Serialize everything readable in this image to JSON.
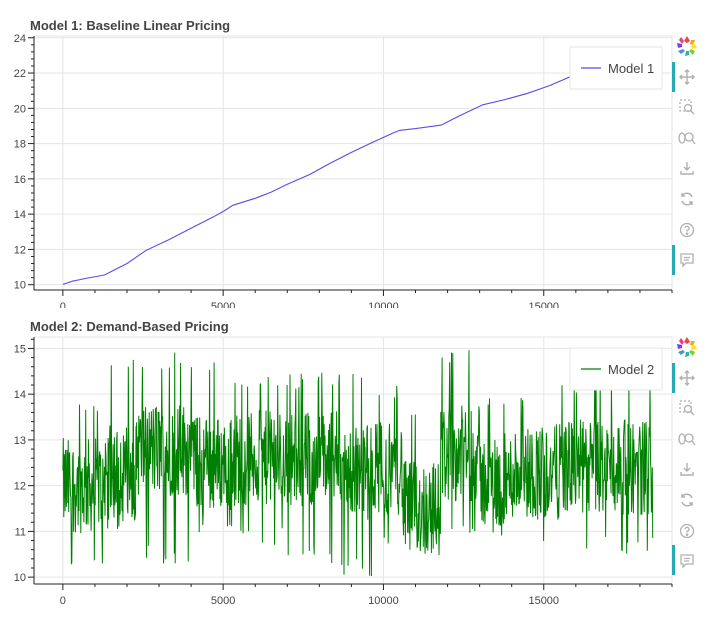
{
  "charts": [
    {
      "title": "Model 1: Baseline Linear Pricing",
      "legend_label": "Model 1",
      "color": "#5c4ce6"
    },
    {
      "title": "Model 2: Demand-Based Pricing",
      "legend_label": "Model 2",
      "color": "#008000"
    }
  ],
  "toolbar": {
    "tools": [
      "bokeh-logo-icon",
      "pan-icon",
      "box-zoom-icon",
      "wheel-zoom-icon",
      "save-icon",
      "reset-icon",
      "help-icon",
      "hover-icon"
    ],
    "accent_color": "#26aab7"
  },
  "chart_data": [
    {
      "type": "line",
      "title": "Model 1: Baseline Linear Pricing",
      "xlim": [
        -900,
        19000
      ],
      "ylim": [
        9.7,
        24.1
      ],
      "x_ticks": [
        0,
        5000,
        10000,
        15000
      ],
      "y_ticks": [
        10,
        12,
        14,
        16,
        18,
        20,
        22,
        24
      ],
      "legend_position": "top-right",
      "grid": true,
      "series": [
        {
          "name": "Model 1",
          "x": [
            0,
            300,
            700,
            1300,
            2000,
            2600,
            3300,
            4000,
            4700,
            5000,
            5300,
            6000,
            6500,
            7000,
            7700,
            8300,
            9000,
            9700,
            10300,
            10500,
            11000,
            11800,
            12400,
            13100,
            13800,
            14500,
            15200,
            15900,
            16500,
            17200,
            17800,
            18300
          ],
          "y": [
            10.02,
            10.2,
            10.35,
            10.55,
            11.2,
            11.95,
            12.55,
            13.2,
            13.85,
            14.15,
            14.5,
            14.9,
            15.25,
            15.7,
            16.25,
            16.85,
            17.5,
            18.1,
            18.6,
            18.75,
            18.85,
            19.05,
            19.6,
            20.2,
            20.5,
            20.85,
            21.3,
            21.85,
            22.1,
            22.55,
            23.0,
            23.4
          ]
        }
      ]
    },
    {
      "type": "line",
      "title": "Model 2: Demand-Based Pricing",
      "xlim": [
        -900,
        19000
      ],
      "ylim": [
        9.85,
        15.25
      ],
      "x_ticks": [
        0,
        5000,
        10000,
        15000
      ],
      "y_ticks": [
        10,
        11,
        12,
        13,
        14,
        15
      ],
      "legend_position": "top-right",
      "grid": true,
      "x_max": 18400,
      "series": [
        {
          "name": "Model 2",
          "segments": [
            {
              "x_start": 0,
              "x_end": 1300,
              "mean": 12.0,
              "low": 10.2,
              "high": 13.9
            },
            {
              "x_start": 1300,
              "x_end": 2300,
              "mean": 12.3,
              "low": 11.0,
              "high": 14.9
            },
            {
              "x_start": 2300,
              "x_end": 4100,
              "mean": 12.8,
              "low": 10.3,
              "high": 14.95
            },
            {
              "x_start": 4100,
              "x_end": 5300,
              "mean": 12.5,
              "low": 10.9,
              "high": 14.9
            },
            {
              "x_start": 5300,
              "x_end": 7000,
              "mean": 12.6,
              "low": 10.7,
              "high": 14.5
            },
            {
              "x_start": 7000,
              "x_end": 8700,
              "mean": 12.6,
              "low": 10.3,
              "high": 14.5
            },
            {
              "x_start": 8700,
              "x_end": 9700,
              "mean": 12.3,
              "low": 10.0,
              "high": 14.5
            },
            {
              "x_start": 9700,
              "x_end": 10600,
              "mean": 12.4,
              "low": 10.5,
              "high": 14.3
            },
            {
              "x_start": 10600,
              "x_end": 11800,
              "mean": 11.5,
              "low": 10.2,
              "high": 13.9
            },
            {
              "x_start": 11800,
              "x_end": 13000,
              "mean": 12.7,
              "low": 10.8,
              "high": 15.0
            },
            {
              "x_start": 13000,
              "x_end": 14000,
              "mean": 12.1,
              "low": 10.8,
              "high": 14.1
            },
            {
              "x_start": 14000,
              "x_end": 15500,
              "mean": 12.3,
              "low": 10.6,
              "high": 14.0
            },
            {
              "x_start": 15500,
              "x_end": 18400,
              "mean": 12.4,
              "low": 10.5,
              "high": 14.4
            }
          ]
        }
      ]
    }
  ]
}
